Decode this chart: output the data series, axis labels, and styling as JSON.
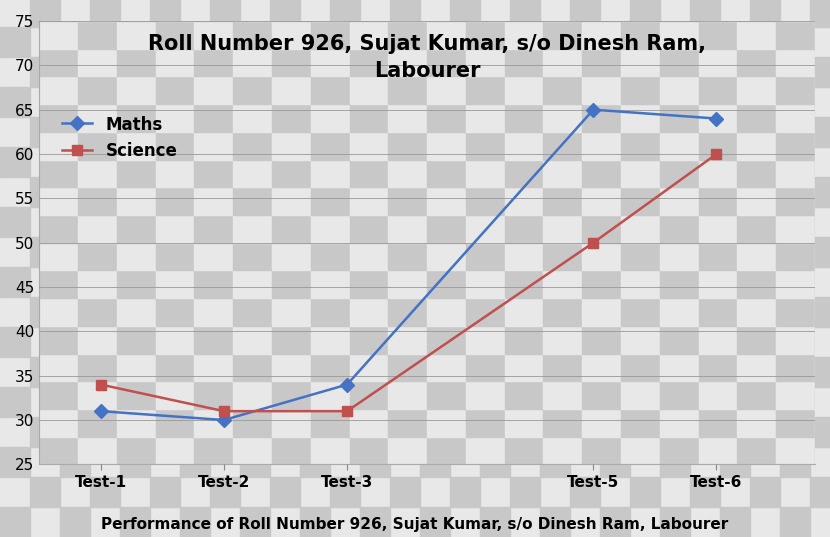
{
  "title_line1": "Roll Number 926, Sujat Kumar, s/o Dinesh Ram,",
  "title_line2": "Labourer",
  "footer": "Performance of Roll Number 926, Sujat Kumar, s/o Dinesh Ram, Labourer",
  "x_labels": [
    "Test-1",
    "Test-2",
    "Test-3",
    "Test-5",
    "Test-6"
  ],
  "x_positions": [
    1,
    2,
    3,
    5,
    6
  ],
  "maths": [
    31,
    30,
    34,
    65,
    64
  ],
  "science": [
    34,
    31,
    31,
    50,
    60
  ],
  "maths_color": "#4472C4",
  "science_color": "#C0504D",
  "maths_label": "Maths",
  "science_label": "Science",
  "ylim": [
    25,
    75
  ],
  "yticks": [
    25,
    30,
    35,
    40,
    45,
    50,
    55,
    60,
    65,
    70,
    75
  ],
  "checker_light": "#e8e8e8",
  "checker_dark": "#c8c8c8",
  "title_fontsize": 15,
  "legend_fontsize": 12,
  "footer_fontsize": 11,
  "tick_fontsize": 11,
  "marker_maths": "D",
  "marker_science": "s",
  "checker_cols": 18,
  "checker_rows": 20
}
